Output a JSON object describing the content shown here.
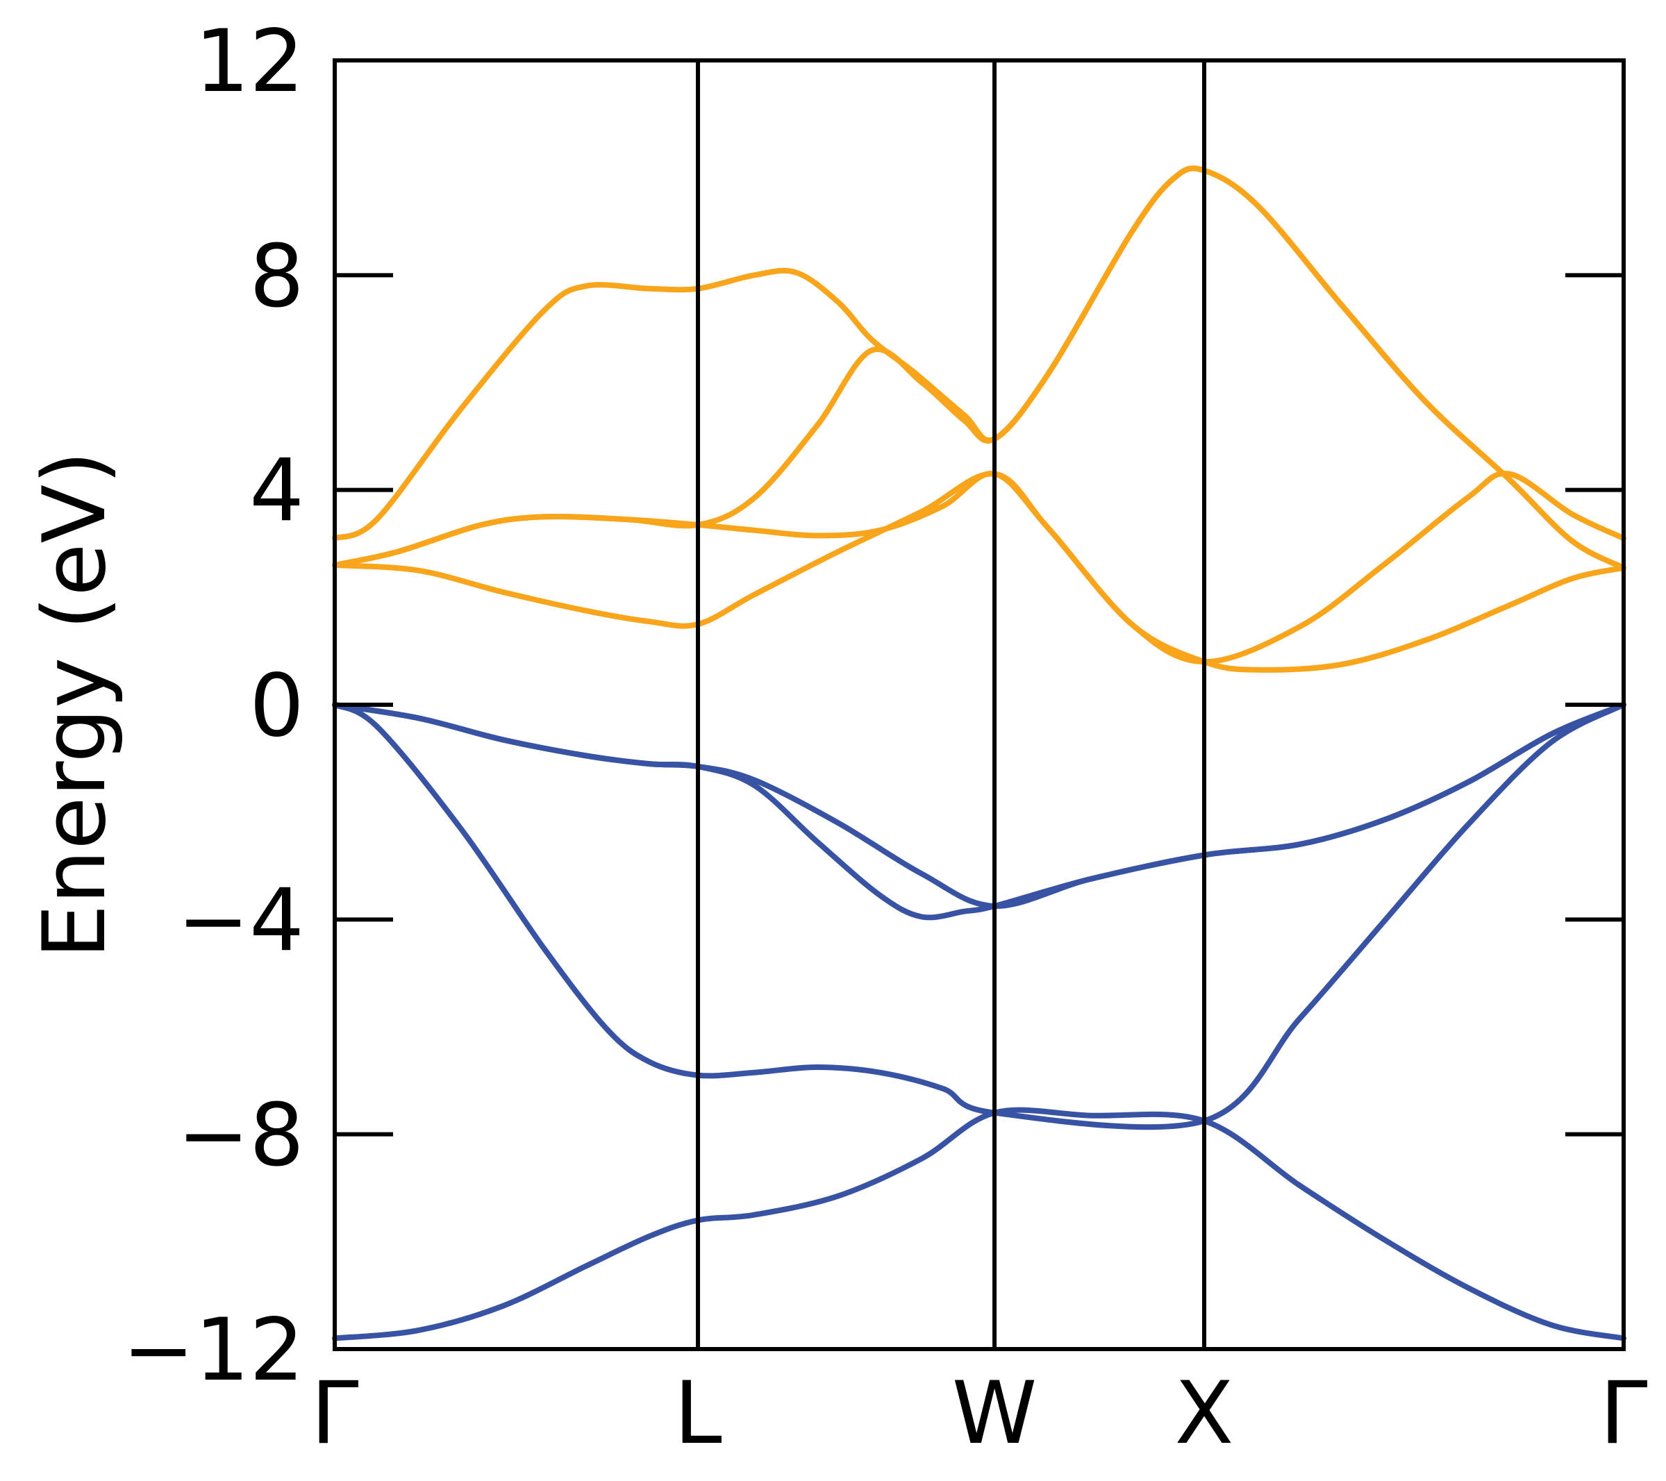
{
  "chart_data": {
    "type": "line",
    "title": "",
    "ylabel": "Energy (eV)",
    "xlabel": "",
    "ylim": [
      -12,
      12
    ],
    "yticks": [
      -12,
      -8,
      -4,
      0,
      4,
      8,
      12
    ],
    "ytick_labels": [
      "−12",
      "−8",
      "−4",
      "0",
      "4",
      "8",
      "12"
    ],
    "k_path": [
      {
        "label": "Γ",
        "x": 0.0
      },
      {
        "label": "L",
        "x": 0.866
      },
      {
        "label": "W",
        "x": 1.573
      },
      {
        "label": "X",
        "x": 2.073
      },
      {
        "label": "Γ",
        "x": 3.073
      }
    ],
    "grid": false,
    "legend": "none",
    "colors": {
      "valence": "#3953a4",
      "conduction": "#f8a51b"
    },
    "series": [
      {
        "group": "valence",
        "points": [
          [
            0,
            -11.8
          ],
          [
            0.2,
            -11.65
          ],
          [
            0.4,
            -11.2
          ],
          [
            0.6,
            -10.45
          ],
          [
            0.75,
            -9.9
          ],
          [
            0.866,
            -9.6
          ],
          [
            1.0,
            -9.5
          ],
          [
            1.2,
            -9.15
          ],
          [
            1.4,
            -8.45
          ],
          [
            1.573,
            -7.6
          ],
          [
            1.8,
            -7.65
          ],
          [
            2.073,
            -7.75
          ],
          [
            2.3,
            -8.95
          ],
          [
            2.5,
            -9.95
          ],
          [
            2.7,
            -10.85
          ],
          [
            2.9,
            -11.55
          ],
          [
            3.073,
            -11.8
          ]
        ]
      },
      {
        "group": "valence",
        "points": [
          [
            0,
            0
          ],
          [
            0.1,
            -0.4
          ],
          [
            0.3,
            -2.3
          ],
          [
            0.5,
            -4.55
          ],
          [
            0.65,
            -6.05
          ],
          [
            0.75,
            -6.65
          ],
          [
            0.866,
            -6.9
          ],
          [
            1.0,
            -6.85
          ],
          [
            1.15,
            -6.75
          ],
          [
            1.3,
            -6.85
          ],
          [
            1.45,
            -7.15
          ],
          [
            1.573,
            -7.6
          ],
          [
            2.073,
            -7.75
          ],
          [
            2.3,
            -5.85
          ],
          [
            2.5,
            -4.05
          ],
          [
            2.7,
            -2.25
          ],
          [
            2.9,
            -0.7
          ],
          [
            3.073,
            0
          ]
        ]
      },
      {
        "group": "valence",
        "points": [
          [
            0,
            0
          ],
          [
            0.2,
            -0.25
          ],
          [
            0.4,
            -0.65
          ],
          [
            0.6,
            -0.95
          ],
          [
            0.75,
            -1.1
          ],
          [
            0.866,
            -1.15
          ],
          [
            1.0,
            -1.5
          ],
          [
            1.15,
            -2.55
          ],
          [
            1.3,
            -3.55
          ],
          [
            1.4,
            -3.95
          ],
          [
            1.5,
            -3.85
          ],
          [
            1.573,
            -3.75
          ],
          [
            1.8,
            -3.25
          ],
          [
            2.073,
            -2.8
          ],
          [
            2.3,
            -2.6
          ],
          [
            2.5,
            -2.15
          ],
          [
            2.7,
            -1.45
          ],
          [
            2.9,
            -0.55
          ],
          [
            3.073,
            0
          ]
        ]
      },
      {
        "group": "valence",
        "points": [
          [
            0,
            0
          ],
          [
            0.2,
            -0.25
          ],
          [
            0.4,
            -0.65
          ],
          [
            0.6,
            -0.95
          ],
          [
            0.75,
            -1.1
          ],
          [
            0.866,
            -1.15
          ],
          [
            1.0,
            -1.4
          ],
          [
            1.2,
            -2.2
          ],
          [
            1.4,
            -3.15
          ],
          [
            1.573,
            -3.75
          ],
          [
            1.8,
            -3.25
          ],
          [
            2.073,
            -2.8
          ],
          [
            2.3,
            -2.6
          ],
          [
            2.5,
            -2.15
          ],
          [
            2.7,
            -1.45
          ],
          [
            2.9,
            -0.55
          ],
          [
            3.073,
            0
          ]
        ]
      },
      {
        "group": "conduction",
        "points": [
          [
            0,
            2.6
          ],
          [
            0.2,
            2.5
          ],
          [
            0.4,
            2.1
          ],
          [
            0.6,
            1.75
          ],
          [
            0.75,
            1.55
          ],
          [
            0.866,
            1.5
          ],
          [
            1.0,
            2.05
          ],
          [
            1.2,
            2.85
          ],
          [
            1.4,
            3.6
          ],
          [
            1.573,
            4.3
          ],
          [
            1.7,
            3.3
          ],
          [
            1.9,
            1.5
          ],
          [
            2.073,
            0.8
          ],
          [
            2.2,
            0.65
          ],
          [
            2.4,
            0.75
          ],
          [
            2.6,
            1.2
          ],
          [
            2.8,
            1.85
          ],
          [
            2.95,
            2.35
          ],
          [
            3.073,
            2.55
          ]
        ]
      },
      {
        "group": "conduction",
        "points": [
          [
            0,
            2.6
          ],
          [
            0.15,
            2.85
          ],
          [
            0.35,
            3.35
          ],
          [
            0.5,
            3.5
          ],
          [
            0.7,
            3.45
          ],
          [
            0.866,
            3.35
          ],
          [
            1.0,
            3.25
          ],
          [
            1.15,
            3.15
          ],
          [
            1.3,
            3.25
          ],
          [
            1.45,
            3.7
          ],
          [
            1.573,
            4.3
          ],
          [
            1.7,
            3.3
          ],
          [
            1.9,
            1.5
          ],
          [
            2.073,
            0.8
          ],
          [
            2.3,
            1.45
          ],
          [
            2.5,
            2.6
          ],
          [
            2.7,
            3.85
          ],
          [
            2.8,
            4.3
          ],
          [
            2.95,
            3.55
          ],
          [
            3.073,
            3.1
          ]
        ]
      },
      {
        "group": "conduction",
        "points": [
          [
            0,
            2.6
          ],
          [
            0.15,
            2.85
          ],
          [
            0.35,
            3.35
          ],
          [
            0.5,
            3.5
          ],
          [
            0.7,
            3.45
          ],
          [
            0.866,
            3.35
          ],
          [
            1.0,
            3.85
          ],
          [
            1.15,
            5.2
          ],
          [
            1.28,
            6.6
          ],
          [
            1.4,
            6.0
          ],
          [
            1.5,
            5.3
          ],
          [
            1.573,
            4.95
          ],
          [
            1.7,
            6.15
          ],
          [
            1.9,
            8.8
          ],
          [
            2.0,
            9.8
          ],
          [
            2.073,
            9.95
          ],
          [
            2.2,
            9.3
          ],
          [
            2.4,
            7.45
          ],
          [
            2.6,
            5.65
          ],
          [
            2.8,
            4.2
          ],
          [
            2.95,
            3.05
          ],
          [
            3.073,
            2.55
          ]
        ]
      },
      {
        "group": "conduction",
        "points": [
          [
            0,
            3.1
          ],
          [
            0.1,
            3.45
          ],
          [
            0.3,
            5.5
          ],
          [
            0.5,
            7.35
          ],
          [
            0.6,
            7.8
          ],
          [
            0.75,
            7.75
          ],
          [
            0.866,
            7.75
          ],
          [
            1.0,
            8.0
          ],
          [
            1.1,
            8.05
          ],
          [
            1.2,
            7.5
          ],
          [
            1.28,
            6.8
          ],
          [
            1.38,
            6.2
          ],
          [
            1.5,
            5.4
          ],
          [
            1.573,
            4.95
          ],
          [
            1.7,
            6.15
          ],
          [
            1.9,
            8.8
          ],
          [
            2.0,
            9.8
          ],
          [
            2.073,
            9.95
          ],
          [
            2.2,
            9.3
          ],
          [
            2.4,
            7.45
          ],
          [
            2.6,
            5.65
          ],
          [
            2.8,
            4.2
          ],
          [
            2.95,
            3.05
          ],
          [
            3.073,
            2.55
          ]
        ]
      }
    ]
  }
}
